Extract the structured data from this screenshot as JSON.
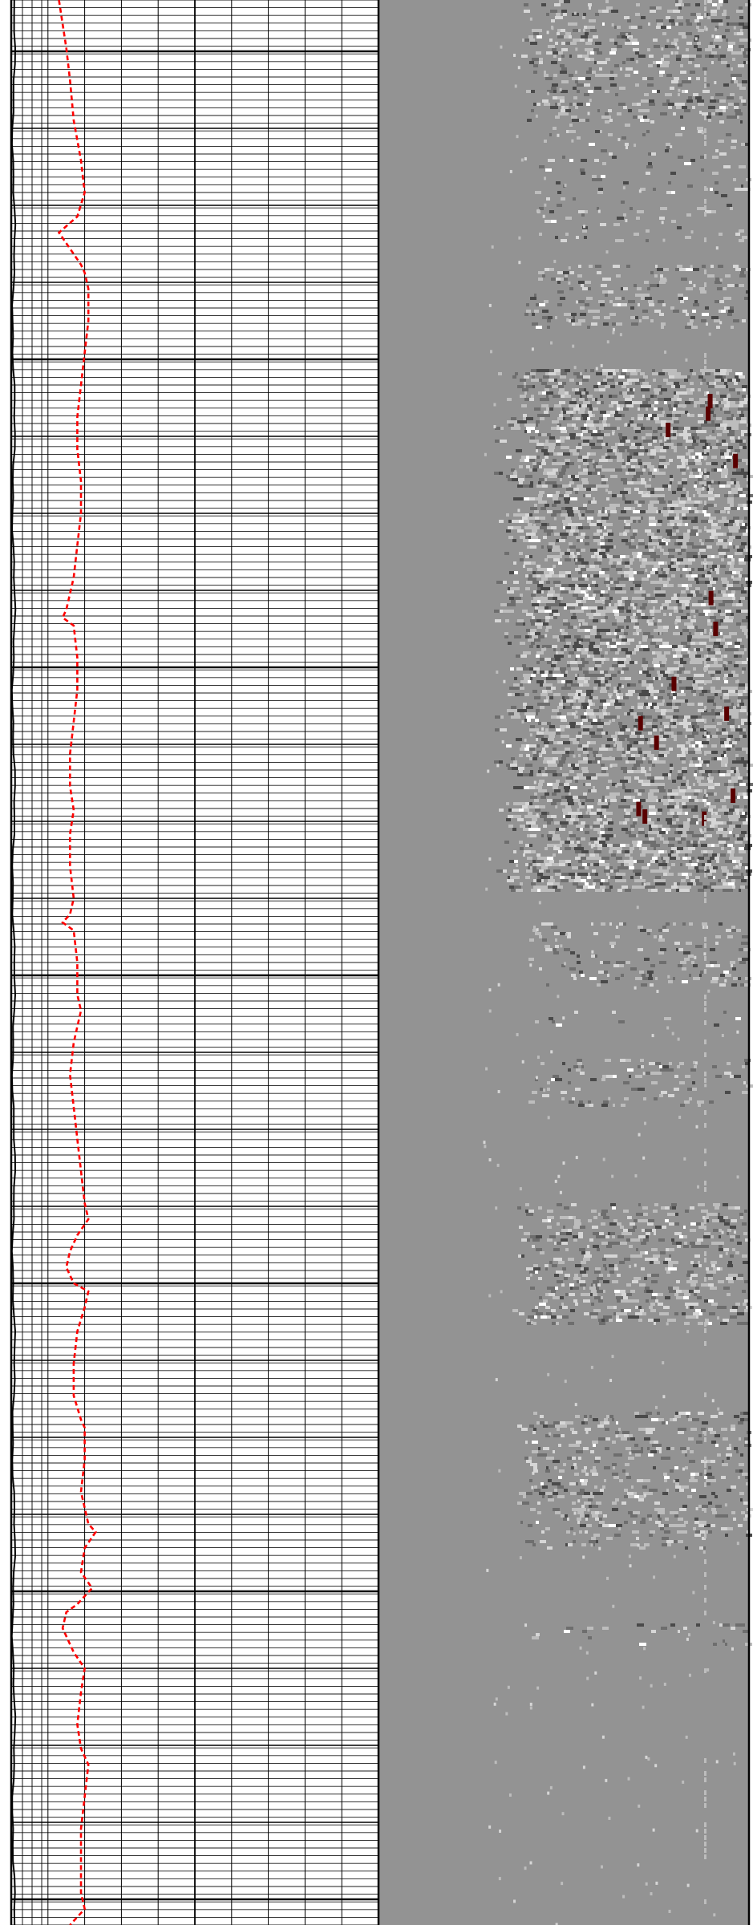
{
  "chart_data": {
    "type": "line",
    "tracks": [
      {
        "name": "",
        "kind": "curve-grid",
        "curve_color": "#ff0000",
        "curve_style": "dashed",
        "x_range": [
          0,
          1
        ],
        "y_range": [
          0,
          2400
        ],
        "curve_points": [
          [
            0.13,
            0
          ],
          [
            0.14,
            30
          ],
          [
            0.15,
            60
          ],
          [
            0.16,
            100
          ],
          [
            0.17,
            150
          ],
          [
            0.19,
            200
          ],
          [
            0.2,
            240
          ],
          [
            0.18,
            270
          ],
          [
            0.13,
            290
          ],
          [
            0.16,
            310
          ],
          [
            0.19,
            330
          ],
          [
            0.2,
            340
          ],
          [
            0.21,
            360
          ],
          [
            0.21,
            400
          ],
          [
            0.2,
            440
          ],
          [
            0.19,
            480
          ],
          [
            0.18,
            520
          ],
          [
            0.18,
            560
          ],
          [
            0.19,
            600
          ],
          [
            0.19,
            640
          ],
          [
            0.18,
            680
          ],
          [
            0.17,
            720
          ],
          [
            0.16,
            740
          ],
          [
            0.15,
            760
          ],
          [
            0.14,
            770
          ],
          [
            0.17,
            780
          ],
          [
            0.18,
            820
          ],
          [
            0.18,
            860
          ],
          [
            0.17,
            900
          ],
          [
            0.16,
            940
          ],
          [
            0.16,
            980
          ],
          [
            0.17,
            1010
          ],
          [
            0.16,
            1040
          ],
          [
            0.16,
            1080
          ],
          [
            0.17,
            1120
          ],
          [
            0.16,
            1140
          ],
          [
            0.14,
            1150
          ],
          [
            0.17,
            1160
          ],
          [
            0.18,
            1200
          ],
          [
            0.18,
            1240
          ],
          [
            0.19,
            1260
          ],
          [
            0.18,
            1280
          ],
          [
            0.17,
            1300
          ],
          [
            0.16,
            1340
          ],
          [
            0.17,
            1380
          ],
          [
            0.18,
            1420
          ],
          [
            0.19,
            1460
          ],
          [
            0.2,
            1500
          ],
          [
            0.21,
            1520
          ],
          [
            0.18,
            1540
          ],
          [
            0.16,
            1560
          ],
          [
            0.15,
            1580
          ],
          [
            0.17,
            1600
          ],
          [
            0.21,
            1610
          ],
          [
            0.2,
            1630
          ],
          [
            0.18,
            1660
          ],
          [
            0.17,
            1700
          ],
          [
            0.17,
            1740
          ],
          [
            0.19,
            1770
          ],
          [
            0.2,
            1780
          ],
          [
            0.2,
            1820
          ],
          [
            0.19,
            1860
          ],
          [
            0.21,
            1900
          ],
          [
            0.23,
            1910
          ],
          [
            0.2,
            1930
          ],
          [
            0.19,
            1960
          ],
          [
            0.22,
            1980
          ],
          [
            0.18,
            2000
          ],
          [
            0.15,
            2010
          ],
          [
            0.14,
            2030
          ],
          [
            0.17,
            2060
          ],
          [
            0.2,
            2080
          ],
          [
            0.19,
            2110
          ],
          [
            0.18,
            2150
          ],
          [
            0.19,
            2180
          ],
          [
            0.21,
            2200
          ],
          [
            0.2,
            2240
          ],
          [
            0.19,
            2280
          ],
          [
            0.19,
            2320
          ],
          [
            0.19,
            2360
          ],
          [
            0.2,
            2380
          ],
          [
            0.16,
            2400
          ]
        ],
        "grid": {
          "major_every": 4,
          "minor_rows": 10,
          "columns": 10
        }
      },
      {
        "name": "",
        "kind": "variable-density-image",
        "background": "#939393",
        "palette": [
          "#bdbdbd",
          "#d6d6d6",
          "#6e6e6e",
          "#4a4a4a",
          "#ffffff",
          "#5a0000"
        ],
        "bands": [
          {
            "y_from": 0,
            "y_to": 150,
            "intensity": 0.55
          },
          {
            "y_from": 150,
            "y_to": 300,
            "intensity": 0.15
          },
          {
            "y_from": 330,
            "y_to": 410,
            "intensity": 0.45
          },
          {
            "y_from": 460,
            "y_to": 1110,
            "intensity": 0.95
          },
          {
            "y_from": 1150,
            "y_to": 1230,
            "intensity": 0.35
          },
          {
            "y_from": 1260,
            "y_to": 1280,
            "intensity": 0.1
          },
          {
            "y_from": 1320,
            "y_to": 1380,
            "intensity": 0.3
          },
          {
            "y_from": 1500,
            "y_to": 1650,
            "intensity": 0.55
          },
          {
            "y_from": 1760,
            "y_to": 1930,
            "intensity": 0.45
          },
          {
            "y_from": 2020,
            "y_to": 2050,
            "intensity": 0.15
          }
        ]
      }
    ]
  }
}
